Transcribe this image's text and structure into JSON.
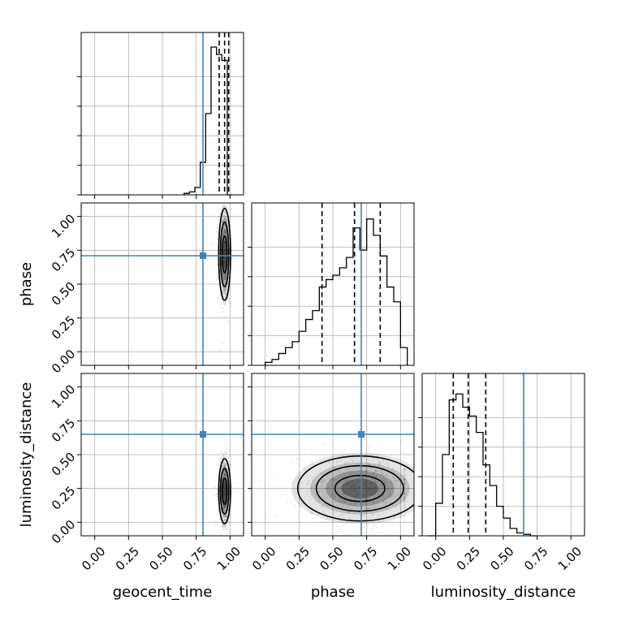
{
  "chart_data": {
    "type": "corner",
    "parameters": [
      "geocent_time",
      "phase",
      "luminosity_distance"
    ],
    "axis_range": [
      -0.1,
      1.1
    ],
    "ticks": [
      0.0,
      0.25,
      0.5,
      0.75,
      1.0
    ],
    "tick_labels": [
      "0.00",
      "0.25",
      "0.50",
      "0.75",
      "1.00"
    ],
    "grid": true,
    "truths": {
      "geocent_time": 0.8,
      "phase": 0.71,
      "luminosity_distance": 0.65
    },
    "colors": {
      "truth": "#4682b4",
      "samples": "#000000"
    },
    "histograms": {
      "geocent_time": {
        "bin_edges": [
          0.66,
          0.7,
          0.74,
          0.78,
          0.82,
          0.86,
          0.9,
          0.94,
          0.98,
          1.02
        ],
        "values": [
          0.01,
          0.02,
          0.05,
          0.22,
          0.55,
          1.0,
          0.95,
          0.91,
          0.0
        ],
        "quantiles": [
          0.92,
          0.96,
          0.99
        ]
      },
      "phase": {
        "bin_edges": [
          0.0,
          0.05,
          0.1,
          0.15,
          0.2,
          0.25,
          0.3,
          0.35,
          0.4,
          0.45,
          0.5,
          0.55,
          0.6,
          0.65,
          0.7,
          0.75,
          0.8,
          0.85,
          0.9,
          0.95,
          1.0,
          1.05
        ],
        "values": [
          0.02,
          0.04,
          0.08,
          0.12,
          0.16,
          0.23,
          0.31,
          0.37,
          0.53,
          0.58,
          0.61,
          0.66,
          0.73,
          0.93,
          0.78,
          0.99,
          0.88,
          0.74,
          0.53,
          0.43,
          0.12
        ],
        "quantiles": [
          0.42,
          0.66,
          0.85
        ]
      },
      "luminosity_distance": {
        "bin_edges": [
          -0.05,
          0.0,
          0.05,
          0.1,
          0.15,
          0.2,
          0.25,
          0.3,
          0.35,
          0.4,
          0.45,
          0.5,
          0.55,
          0.6,
          0.65,
          0.7,
          0.75
        ],
        "values": [
          0.0,
          0.22,
          0.55,
          0.92,
          0.96,
          0.87,
          0.81,
          0.7,
          0.48,
          0.34,
          0.2,
          0.12,
          0.05,
          0.02,
          0.01,
          0.0
        ],
        "quantiles": [
          0.13,
          0.24,
          0.37
        ]
      }
    },
    "joint": [
      {
        "x": "geocent_time",
        "y": "phase",
        "center": [
          0.96,
          0.72
        ],
        "spread": [
          0.022,
          0.17
        ]
      },
      {
        "x": "geocent_time",
        "y": "luminosity_distance",
        "center": [
          0.96,
          0.23
        ],
        "spread": [
          0.022,
          0.12
        ]
      },
      {
        "x": "phase",
        "y": "luminosity_distance",
        "center": [
          0.7,
          0.25
        ],
        "spread": [
          0.23,
          0.12
        ]
      }
    ]
  }
}
